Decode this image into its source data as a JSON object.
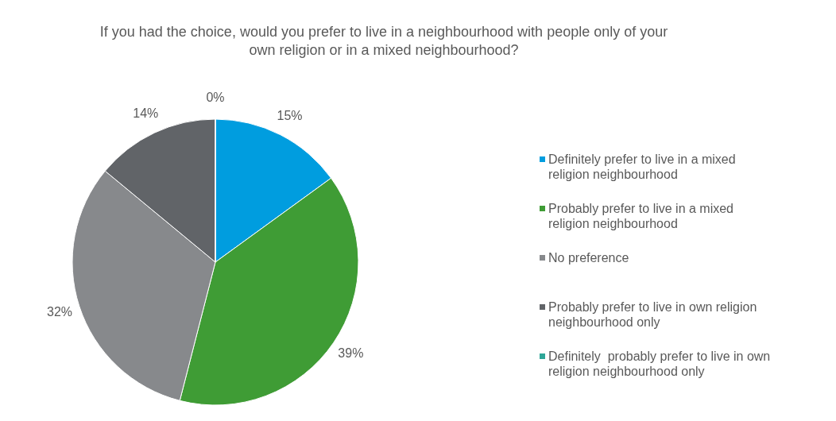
{
  "chart_data": {
    "type": "pie",
    "title": "If you had the choice, would you prefer to live in a neighbourhood with people only of your own religion or in a mixed neighbourhood?",
    "categories": [
      "Definitely prefer to live in a mixed religion neighbourhood",
      "Probably prefer to live in a mixed religion neighbourhood",
      "No preference",
      "Probably prefer to live in own religion neighbourhood only",
      "Definitely  probably prefer to live in own religion neighbourhood only"
    ],
    "values": [
      15,
      39,
      32,
      14,
      0
    ],
    "value_labels": [
      "15%",
      "39%",
      "32%",
      "14%",
      "0%"
    ],
    "colors": [
      "#009ddf",
      "#3f9c35",
      "#87898c",
      "#616468",
      "#2ea698"
    ],
    "legend": "right"
  }
}
